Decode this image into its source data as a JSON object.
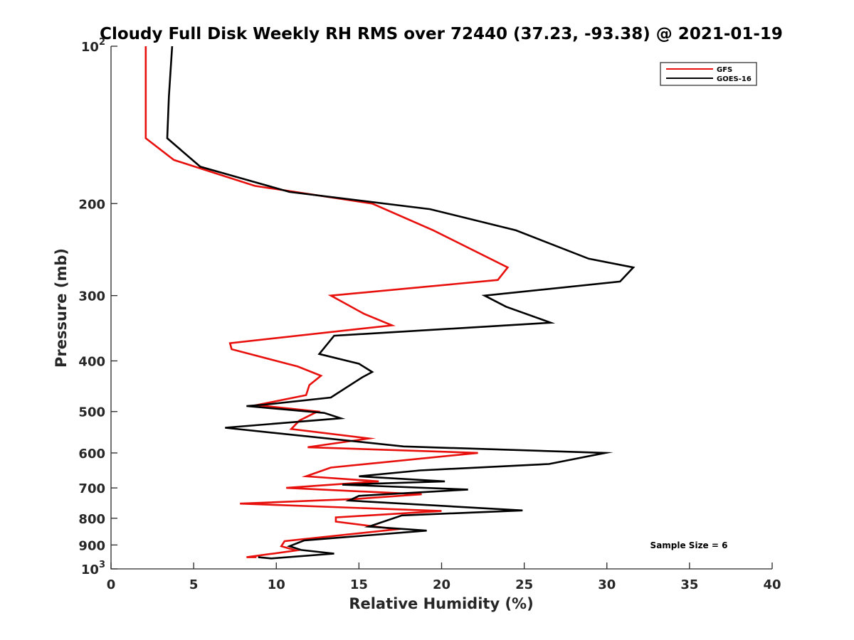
{
  "chart_data": {
    "type": "line",
    "title": "Cloudy Full Disk Weekly RH RMS over 72440 (37.23, -93.38) @ 2021-01-19",
    "xlabel": "Relative Humidity (%)",
    "ylabel": "Pressure (mb)",
    "xlim": [
      0,
      40
    ],
    "ylim": [
      100,
      1000
    ],
    "y_scale": "log",
    "y_reversed": true,
    "grid": false,
    "legend_position": "top-right",
    "x_ticks": [
      "0",
      "5",
      "10",
      "15",
      "20",
      "25",
      "30",
      "35",
      "40"
    ],
    "y_ticks": [
      {
        "value": 100,
        "base": "10",
        "exp": "2"
      },
      {
        "value": 200,
        "label": "200"
      },
      {
        "value": 300,
        "label": "300"
      },
      {
        "value": 400,
        "label": "400"
      },
      {
        "value": 500,
        "label": "500"
      },
      {
        "value": 600,
        "label": "600"
      },
      {
        "value": 700,
        "label": "700"
      },
      {
        "value": 800,
        "label": "800"
      },
      {
        "value": 900,
        "label": "900"
      },
      {
        "value": 1000,
        "base": "10",
        "exp": "3"
      }
    ],
    "annotation": "Sample Size = 6",
    "series": [
      {
        "name": "GFS",
        "color": "#e8100c",
        "points": [
          [
            2.1,
            100
          ],
          [
            2.1,
            125
          ],
          [
            2.1,
            150
          ],
          [
            3.8,
            165
          ],
          [
            8.7,
            185
          ],
          [
            15.8,
            200
          ],
          [
            19.5,
            225
          ],
          [
            24.0,
            265
          ],
          [
            23.4,
            280
          ],
          [
            13.3,
            300
          ],
          [
            15.3,
            325
          ],
          [
            17.0,
            342
          ],
          [
            7.2,
            370
          ],
          [
            7.3,
            380
          ],
          [
            11.3,
            410
          ],
          [
            12.7,
            427
          ],
          [
            12.0,
            445
          ],
          [
            11.8,
            465
          ],
          [
            8.8,
            486
          ],
          [
            12.5,
            500
          ],
          [
            11.4,
            520
          ],
          [
            10.9,
            540
          ],
          [
            15.6,
            563
          ],
          [
            11.9,
            585
          ],
          [
            22.2,
            600
          ],
          [
            13.3,
            640
          ],
          [
            11.8,
            665
          ],
          [
            16.2,
            680
          ],
          [
            10.6,
            700
          ],
          [
            18.8,
            720
          ],
          [
            14.8,
            735
          ],
          [
            7.8,
            750
          ],
          [
            20.0,
            775
          ],
          [
            13.6,
            797
          ],
          [
            13.6,
            812
          ],
          [
            17.3,
            840
          ],
          [
            10.5,
            885
          ],
          [
            10.3,
            905
          ],
          [
            11.2,
            922
          ],
          [
            8.2,
            950
          ],
          [
            8.8,
            950
          ]
        ]
      },
      {
        "name": "GOES-16",
        "color": "#000000",
        "points": [
          [
            3.7,
            100
          ],
          [
            3.5,
            125
          ],
          [
            3.4,
            150
          ],
          [
            5.4,
            170
          ],
          [
            10.8,
            190
          ],
          [
            19.3,
            205
          ],
          [
            24.5,
            225
          ],
          [
            28.9,
            255
          ],
          [
            31.6,
            265
          ],
          [
            30.8,
            282
          ],
          [
            22.6,
            300
          ],
          [
            23.9,
            315
          ],
          [
            26.6,
            338
          ],
          [
            13.5,
            358
          ],
          [
            12.6,
            388
          ],
          [
            15.0,
            405
          ],
          [
            15.8,
            420
          ],
          [
            15.2,
            430
          ],
          [
            13.3,
            470
          ],
          [
            9.3,
            485
          ],
          [
            8.2,
            488
          ],
          [
            12.9,
            503
          ],
          [
            13.9,
            515
          ],
          [
            6.9,
            537
          ],
          [
            17.7,
            583
          ],
          [
            29.9,
            600
          ],
          [
            26.5,
            630
          ],
          [
            18.7,
            648
          ],
          [
            15.0,
            665
          ],
          [
            20.2,
            680
          ],
          [
            14.0,
            690
          ],
          [
            21.6,
            705
          ],
          [
            15.0,
            725
          ],
          [
            14.4,
            740
          ],
          [
            24.9,
            773
          ],
          [
            17.6,
            790
          ],
          [
            15.6,
            830
          ],
          [
            19.1,
            845
          ],
          [
            11.7,
            882
          ],
          [
            10.8,
            905
          ],
          [
            11.5,
            920
          ],
          [
            13.5,
            935
          ],
          [
            9.7,
            955
          ],
          [
            8.9,
            950
          ]
        ]
      }
    ]
  }
}
